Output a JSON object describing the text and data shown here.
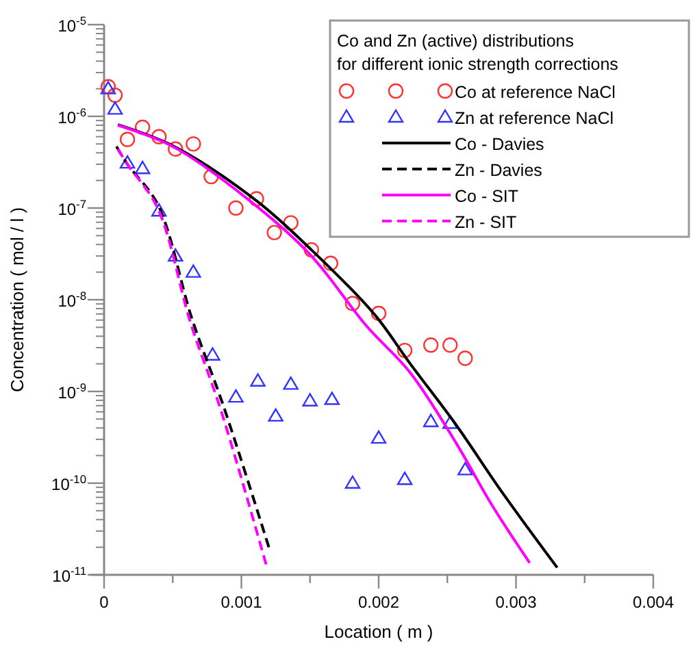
{
  "chart_data": {
    "type": "scatter",
    "legend_title": "Co and Zn (active) distributions\nfor different ionic strength corrections",
    "xlabel": "Location ( m )",
    "ylabel": "Concentration ( mol / l )",
    "xlim": [
      0,
      0.004
    ],
    "xticks": [
      0,
      {
        "value": 0.0005,
        "label": null
      },
      0.001,
      {
        "value": 0.0015,
        "label": null
      },
      0.002,
      {
        "value": 0.0025,
        "label": null
      },
      0.003,
      {
        "value": 0.0035,
        "label": null
      },
      0.004
    ],
    "ylim": [
      1e-11,
      1e-05
    ],
    "yticks": [
      {
        "value": 1e-05,
        "label": "10$^{-5}$"
      },
      {
        "value": 1e-06,
        "label": "10$^{-6}$"
      },
      {
        "value": 1e-07,
        "label": "10$^{-7}$"
      },
      {
        "value": 1e-08,
        "label": "10$^{-8}$"
      },
      {
        "value": 1e-09,
        "label": "10$^{-9}$"
      },
      {
        "value": 1e-10,
        "label": "10$^{-10}$"
      },
      {
        "value": 1e-11,
        "label": "10$^{-11}$"
      }
    ],
    "log": "y",
    "grid": false,
    "legend": "top right",
    "series": [
      {
        "name": "Co at reference NaCl",
        "type": "scatter",
        "marker": "circle",
        "color": "#ff3333",
        "x": [
          3e-05,
          8e-05,
          0.00017,
          0.00028,
          0.0004,
          0.00052,
          0.00065,
          0.00078,
          0.00096,
          0.00111,
          0.00124,
          0.00136,
          0.00151,
          0.00165,
          0.00181,
          0.002,
          0.00219,
          0.00238,
          0.00252,
          0.00263
        ],
        "values": [
          2.1e-06,
          1.7e-06,
          5.6e-07,
          7.6e-07,
          6e-07,
          4.4e-07,
          5e-07,
          2.2e-07,
          1e-07,
          1.26e-07,
          5.4e-08,
          6.9e-08,
          3.5e-08,
          2.5e-08,
          9.1e-09,
          7.1e-09,
          2.8e-09,
          3.2e-09,
          3.2e-09,
          2.3e-09
        ]
      },
      {
        "name": "Zn at reference NaCl",
        "type": "scatter",
        "marker": "triangle",
        "color": "#3333ff",
        "x": [
          3e-05,
          8e-05,
          0.00017,
          0.00028,
          0.0004,
          0.00052,
          0.00065,
          0.00079,
          0.00096,
          0.00112,
          0.00125,
          0.00136,
          0.0015,
          0.00166,
          0.00181,
          0.002,
          0.00219,
          0.00238,
          0.00252,
          0.00263
        ],
        "values": [
          2e-06,
          1.2e-06,
          3.1e-07,
          2.7e-07,
          9.3e-08,
          3e-08,
          2e-08,
          2.5e-09,
          8.7e-10,
          1.3e-09,
          5.4e-10,
          1.2e-09,
          7.9e-10,
          8.2e-10,
          1e-10,
          3.1e-10,
          1.1e-10,
          4.7e-10,
          4.5e-10,
          1.4e-10
        ]
      },
      {
        "name": "Co - Davies",
        "type": "line",
        "marker": "none",
        "line_style": "solid",
        "color": "#000000",
        "x": [
          0.0001,
          0.00051,
          0.00111,
          0.00151,
          0.00197,
          0.00223,
          0.00256,
          0.0029,
          0.0033
        ],
        "values": [
          8.1e-07,
          4.7e-07,
          1.2e-07,
          3.5e-08,
          6.9e-09,
          2e-09,
          4.4e-10,
          7.9e-11,
          1.2e-11
        ]
      },
      {
        "name": "Zn - Davies",
        "type": "line",
        "marker": "none",
        "line_style": "dashed",
        "color": "#000000",
        "x": [
          9e-05,
          0.00017,
          0.00039,
          0.00064,
          0.00087,
          0.0012
        ],
        "values": [
          4.7e-07,
          3e-07,
          1.1e-07,
          6.2e-09,
          6.9e-10,
          2e-11
        ]
      },
      {
        "name": "Co - SIT",
        "type": "line",
        "marker": "none",
        "line_style": "solid",
        "color": "#ff00ff",
        "x": [
          0.0001,
          0.00051,
          0.00111,
          0.00151,
          0.00191,
          0.00223,
          0.00256,
          0.00283,
          0.0031
        ],
        "values": [
          8e-07,
          4.6e-07,
          1.05e-07,
          3e-08,
          5.2e-09,
          1.6e-09,
          2.8e-10,
          5.6e-11,
          1.35e-11
        ]
      },
      {
        "name": "Zn - SIT",
        "type": "line",
        "marker": "none",
        "line_style": "dashed",
        "color": "#ff00ff",
        "x": [
          0.0001,
          0.00017,
          0.00039,
          0.00063,
          0.00085,
          0.00118
        ],
        "values": [
          4.4e-07,
          3e-07,
          1e-07,
          5.6e-09,
          6.3e-10,
          1.3e-11
        ]
      }
    ]
  }
}
